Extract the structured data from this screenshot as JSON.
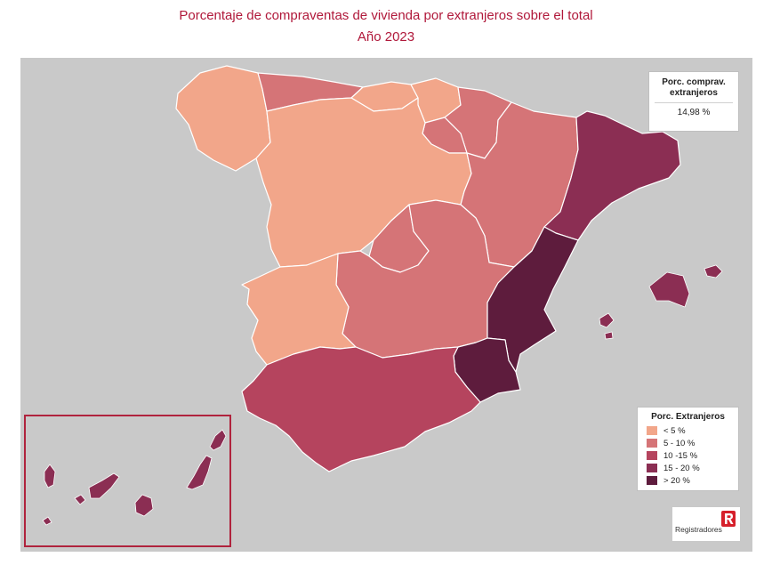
{
  "title": {
    "line1": "Porcentaje de compraventas de vivienda por extranjeros sobre el total",
    "line2": "Año 2023"
  },
  "stat_box": {
    "label": "Porc. comprav. extranjeros",
    "value": "14,98 %"
  },
  "legend": {
    "title": "Porc. Extranjeros",
    "items": [
      {
        "label": "< 5 %",
        "color": "#f2a68a"
      },
      {
        "label": "5 - 10 %",
        "color": "#d57477"
      },
      {
        "label": "10 -15 %",
        "color": "#b5445e"
      },
      {
        "label": "15 - 20 %",
        "color": "#8b2e53"
      },
      {
        "label": "> 20 %",
        "color": "#5e1c3d"
      }
    ]
  },
  "logo": {
    "name": "Registradores",
    "icon": "registradores-r-logo-icon"
  },
  "colors": {
    "background": "#c9c9c9",
    "title": "#b0183a",
    "canary_border": "#b0233d"
  },
  "regions": [
    {
      "name": "Galicia",
      "class": "< 5 %"
    },
    {
      "name": "Asturias",
      "class": "5 - 10 %"
    },
    {
      "name": "Cantabria",
      "class": "< 5 %"
    },
    {
      "name": "País Vasco",
      "class": "< 5 %"
    },
    {
      "name": "Navarra",
      "class": "5 - 10 %"
    },
    {
      "name": "La Rioja",
      "class": "5 - 10 %"
    },
    {
      "name": "Aragón",
      "class": "5 - 10 %"
    },
    {
      "name": "Cataluña",
      "class": "15 - 20 %"
    },
    {
      "name": "Castilla y León",
      "class": "< 5 %"
    },
    {
      "name": "Madrid",
      "class": "5 - 10 %"
    },
    {
      "name": "Castilla-La Mancha",
      "class": "5 - 10 %"
    },
    {
      "name": "Extremadura",
      "class": "< 5 %"
    },
    {
      "name": "Comunidad Valenciana",
      "class": "> 20 %"
    },
    {
      "name": "Región de Murcia",
      "class": "> 20 %"
    },
    {
      "name": "Andalucía",
      "class": "10 -15 %"
    },
    {
      "name": "Islas Baleares",
      "class": "15 - 20 %"
    },
    {
      "name": "Canarias",
      "class": "15 - 20 %"
    }
  ]
}
